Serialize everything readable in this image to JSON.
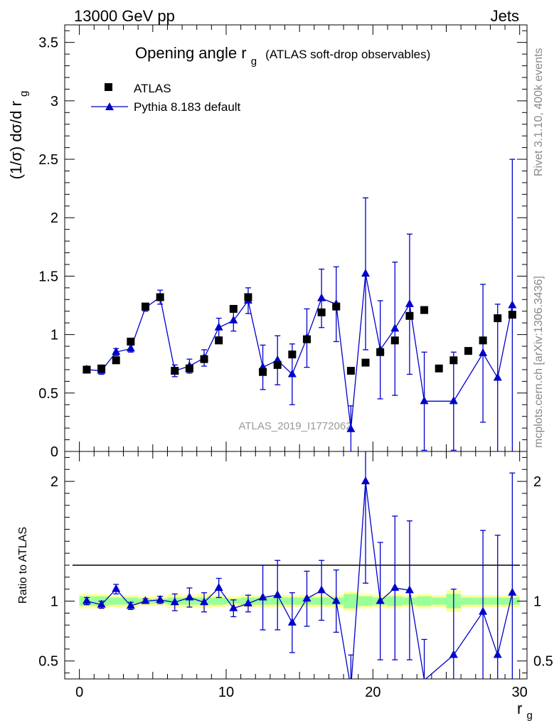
{
  "header": {
    "energy_label": "13000 GeV pp",
    "process_label": "Jets"
  },
  "side_labels": {
    "rivet": "Rivet 3.1.10,  400k events",
    "mcplots": "mcplots.cern.ch [arXiv:1306.3436]"
  },
  "colors": {
    "data": "#000000",
    "mc": "#0000cc",
    "band_inner": "#99ff99",
    "band_outer": "#ffff99",
    "ref_line": "#000000",
    "analysis_label": "#999999"
  },
  "chart_data": [
    {
      "type": "scatter",
      "name": "main",
      "title_prefix": "Opening angle r",
      "title_sub": "g",
      "title_suffix": "(ATLAS soft-drop observables)",
      "ylabel": "(1/σ) dσ/d r",
      "ylabel_sub": "g",
      "analysis_label": "ATLAS_2019_I1772062",
      "xlim": [
        -1,
        30.5
      ],
      "ylim": [
        0,
        3.65
      ],
      "yticks": [
        0.5,
        1,
        1.5,
        2,
        2.5,
        3,
        3.5
      ],
      "ytick_labels": [
        "0.5",
        "1",
        "1.5",
        "2",
        "2.5",
        "3",
        "3.5"
      ],
      "y_zero_label": "0",
      "legend": [
        "ATLAS",
        "Pythia 8.183 default"
      ],
      "x": [
        0.5,
        1.5,
        2.5,
        3.5,
        4.5,
        5.5,
        6.5,
        7.5,
        8.5,
        9.5,
        10.5,
        11.5,
        12.5,
        13.5,
        14.5,
        15.5,
        16.5,
        17.5,
        18.5,
        19.5,
        20.5,
        21.5,
        22.5,
        23.5,
        24.5,
        25.5,
        26.5,
        27.5,
        28.5,
        29.5
      ],
      "series": [
        {
          "name": "ATLAS",
          "values": [
            0.7,
            0.71,
            0.78,
            0.94,
            1.24,
            1.32,
            0.69,
            0.71,
            0.79,
            0.95,
            1.22,
            1.32,
            0.68,
            0.74,
            0.83,
            0.96,
            1.19,
            1.24,
            0.69,
            0.76,
            0.85,
            0.95,
            1.16,
            1.21,
            0.71,
            0.78,
            0.86,
            0.95,
            1.14,
            1.17
          ]
        },
        {
          "name": "Pythia 8.183 default",
          "values": [
            0.7,
            0.69,
            0.85,
            0.88,
            1.23,
            1.32,
            0.69,
            0.73,
            0.8,
            1.06,
            1.12,
            1.29,
            0.72,
            0.78,
            0.66,
            0.97,
            1.31,
            1.26,
            0.19,
            1.52,
            0.87,
            1.05,
            1.26,
            0.43,
            null,
            0.43,
            null,
            0.84,
            0.63,
            1.25
          ],
          "errors": [
            0.02,
            0.03,
            0.03,
            0.03,
            0.03,
            0.06,
            0.05,
            0.06,
            0.07,
            0.08,
            0.09,
            0.11,
            0.19,
            0.21,
            0.26,
            0.25,
            0.25,
            0.32,
            0.2,
            0.65,
            0.42,
            0.57,
            0.6,
            0.42,
            null,
            0.42,
            null,
            0.59,
            0.63,
            1.25
          ]
        }
      ]
    },
    {
      "type": "scatter",
      "name": "ratio",
      "ylabel": "Ratio to ATLAS",
      "xlabel": "r",
      "xlabel_sub": "g",
      "xlim": [
        -1,
        30.5
      ],
      "ylim": [
        0.35,
        2.25
      ],
      "xticks": [
        0,
        10,
        20,
        30
      ],
      "xtick_labels": [
        "0",
        "10",
        "20",
        "30"
      ],
      "yticks": [
        0.5,
        1,
        2
      ],
      "ytick_labels": [
        "0.5",
        "1",
        "2"
      ],
      "x": [
        0.5,
        1.5,
        2.5,
        3.5,
        4.5,
        5.5,
        6.5,
        7.5,
        8.5,
        9.5,
        10.5,
        11.5,
        12.5,
        13.5,
        14.5,
        15.5,
        16.5,
        17.5,
        18.5,
        19.5,
        20.5,
        21.5,
        22.5,
        23.5,
        24.5,
        25.5,
        26.5,
        27.5,
        28.5,
        29.5
      ],
      "band_inner": [
        0.04,
        0.04,
        0.03,
        0.03,
        0.02,
        0.02,
        0.03,
        0.03,
        0.03,
        0.03,
        0.02,
        0.03,
        0.03,
        0.03,
        0.03,
        0.03,
        0.03,
        0.03,
        0.06,
        0.04,
        0.03,
        0.04,
        0.03,
        0.04,
        0.03,
        0.06,
        0.03,
        0.03,
        0.03,
        0.03
      ],
      "band_outer": [
        0.06,
        0.06,
        0.05,
        0.05,
        0.04,
        0.04,
        0.06,
        0.05,
        0.06,
        0.05,
        0.04,
        0.05,
        0.05,
        0.05,
        0.05,
        0.05,
        0.05,
        0.05,
        0.08,
        0.06,
        0.05,
        0.06,
        0.05,
        0.06,
        0.05,
        0.09,
        0.05,
        0.05,
        0.05,
        0.05
      ],
      "series": [
        {
          "name": "Pythia 8.183 default",
          "values": [
            1.0,
            0.97,
            1.1,
            0.96,
            1.0,
            1.01,
            0.99,
            1.03,
            0.99,
            1.11,
            0.94,
            0.98,
            1.03,
            1.05,
            0.82,
            1.02,
            1.09,
            1.0,
            0.27,
            2.0,
            1.0,
            1.11,
            1.09,
            0.34,
            null,
            0.55,
            null,
            0.91,
            0.55,
            1.07
          ],
          "errors": [
            0.03,
            0.03,
            0.04,
            0.03,
            0.02,
            0.03,
            0.07,
            0.08,
            0.08,
            0.08,
            0.07,
            0.07,
            0.27,
            0.29,
            0.25,
            0.23,
            0.25,
            0.26,
            0.28,
            0.85,
            0.49,
            0.6,
            0.58,
            0.34,
            null,
            0.55,
            null,
            0.68,
            1.0,
            1.0
          ]
        }
      ]
    }
  ]
}
